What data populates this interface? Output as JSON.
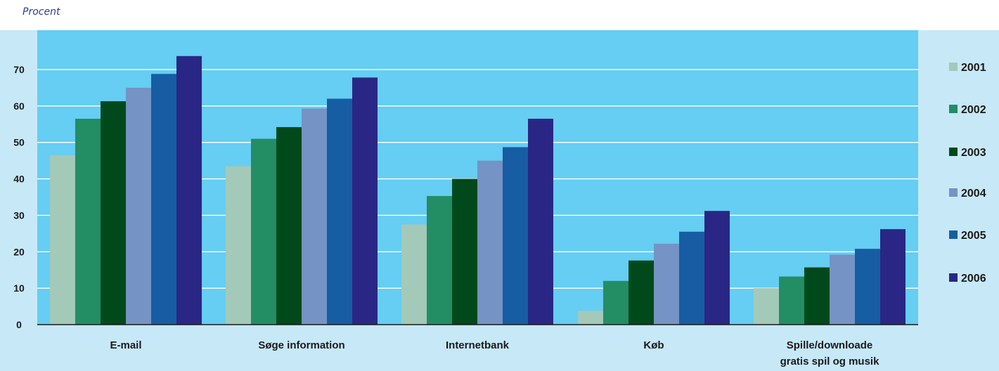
{
  "unit_label": "Procent",
  "chart_data": {
    "type": "bar",
    "ylabel": "Procent",
    "ylim": [
      0,
      75
    ],
    "yticks": [
      0,
      10,
      20,
      30,
      40,
      50,
      60,
      70
    ],
    "grid": true,
    "legend_position": "right",
    "plot_background": "#66cdf3",
    "frame_background": "#c7e8f7",
    "categories": [
      [
        "E-mail"
      ],
      [
        "Søge information"
      ],
      [
        "Internetbank"
      ],
      [
        "Køb"
      ],
      [
        "Spille/downloade",
        "gratis spil og musik"
      ]
    ],
    "series": [
      {
        "name": "2001",
        "color": "#a3c9b8",
        "values": [
          46.5,
          43.5,
          27.5,
          3.8,
          10.0
        ]
      },
      {
        "name": "2002",
        "color": "#238d64",
        "values": [
          56.5,
          51.0,
          35.3,
          12.0,
          13.2
        ]
      },
      {
        "name": "2003",
        "color": "#00491b",
        "values": [
          61.3,
          54.2,
          40.0,
          17.6,
          15.7
        ]
      },
      {
        "name": "2004",
        "color": "#7593c5",
        "values": [
          65.0,
          59.3,
          45.0,
          22.2,
          19.2
        ]
      },
      {
        "name": "2005",
        "color": "#175da3",
        "values": [
          68.8,
          62.0,
          48.7,
          25.5,
          20.8
        ]
      },
      {
        "name": "2006",
        "color": "#2a2685",
        "values": [
          73.7,
          67.8,
          56.5,
          31.2,
          26.2
        ]
      }
    ]
  }
}
